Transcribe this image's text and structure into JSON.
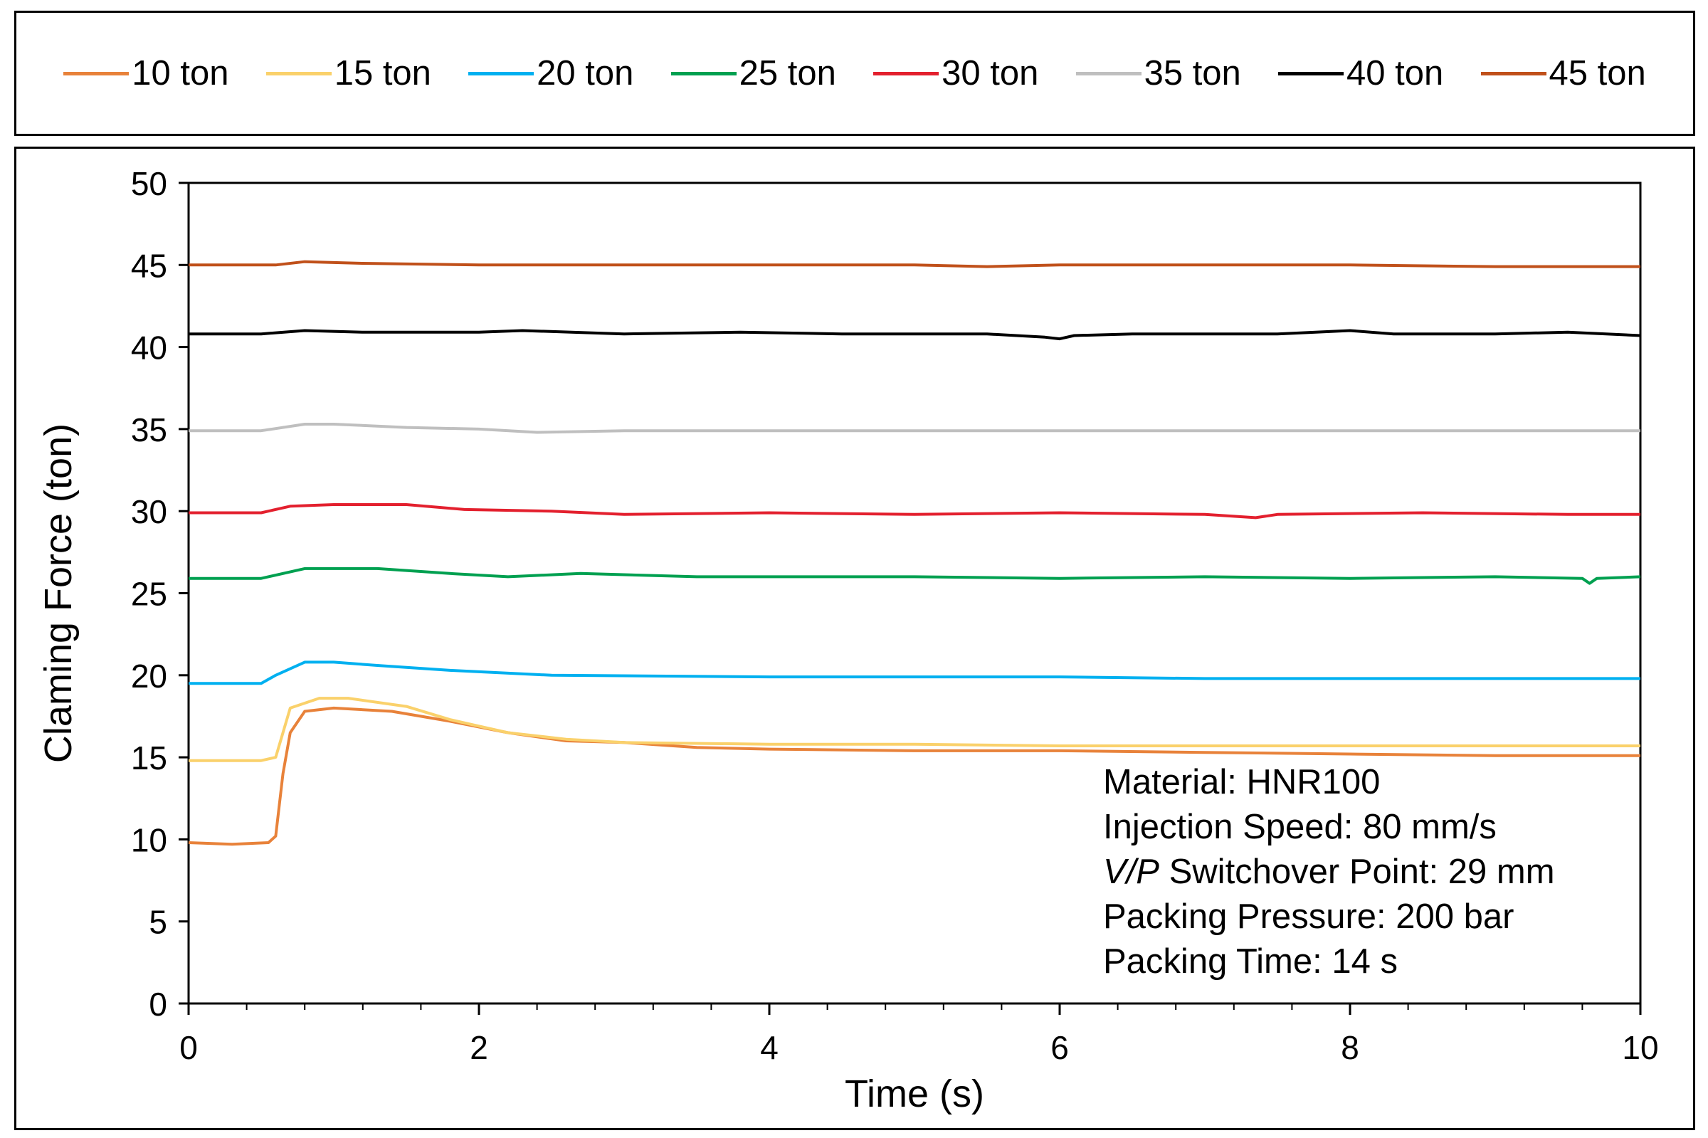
{
  "chart_data": {
    "type": "line",
    "title": "",
    "xlabel": "Time (s)",
    "ylabel": "Claming Force (ton)",
    "xlim": [
      0,
      10
    ],
    "ylim": [
      0,
      50
    ],
    "xticks": [
      "0",
      "2",
      "4",
      "6",
      "8",
      "10"
    ],
    "yticks": [
      "0",
      "5",
      "10",
      "15",
      "20",
      "25",
      "30",
      "35",
      "40",
      "45",
      "50"
    ],
    "legend_position": "top",
    "series": [
      {
        "name": "10 ton",
        "color": "#E8823A",
        "points": [
          [
            0,
            9.8
          ],
          [
            0.3,
            9.7
          ],
          [
            0.55,
            9.8
          ],
          [
            0.6,
            10.2
          ],
          [
            0.65,
            14
          ],
          [
            0.7,
            16.5
          ],
          [
            0.8,
            17.8
          ],
          [
            1.0,
            18.0
          ],
          [
            1.4,
            17.8
          ],
          [
            1.8,
            17.2
          ],
          [
            2.2,
            16.5
          ],
          [
            2.6,
            16.0
          ],
          [
            3.0,
            15.9
          ],
          [
            3.5,
            15.6
          ],
          [
            4.0,
            15.5
          ],
          [
            5.0,
            15.4
          ],
          [
            6.0,
            15.4
          ],
          [
            7.0,
            15.3
          ],
          [
            8.0,
            15.2
          ],
          [
            9.0,
            15.1
          ],
          [
            10.0,
            15.1
          ]
        ]
      },
      {
        "name": "15 ton",
        "color": "#FAD16B",
        "points": [
          [
            0,
            14.8
          ],
          [
            0.5,
            14.8
          ],
          [
            0.6,
            15.0
          ],
          [
            0.65,
            16.5
          ],
          [
            0.7,
            18.0
          ],
          [
            0.9,
            18.6
          ],
          [
            1.1,
            18.6
          ],
          [
            1.5,
            18.1
          ],
          [
            1.8,
            17.3
          ],
          [
            2.2,
            16.5
          ],
          [
            2.6,
            16.1
          ],
          [
            3.0,
            15.9
          ],
          [
            4.0,
            15.8
          ],
          [
            5.0,
            15.8
          ],
          [
            6.0,
            15.7
          ],
          [
            7.0,
            15.7
          ],
          [
            8.0,
            15.7
          ],
          [
            9.0,
            15.7
          ],
          [
            10.0,
            15.7
          ]
        ]
      },
      {
        "name": "20 ton",
        "color": "#00B0F0",
        "points": [
          [
            0,
            19.5
          ],
          [
            0.5,
            19.5
          ],
          [
            0.6,
            20.0
          ],
          [
            0.8,
            20.8
          ],
          [
            1.0,
            20.8
          ],
          [
            1.3,
            20.6
          ],
          [
            1.8,
            20.3
          ],
          [
            2.5,
            20.0
          ],
          [
            4.0,
            19.9
          ],
          [
            6.0,
            19.9
          ],
          [
            7.0,
            19.8
          ],
          [
            8.0,
            19.8
          ],
          [
            9.0,
            19.8
          ],
          [
            10.0,
            19.8
          ]
        ]
      },
      {
        "name": "25 ton",
        "color": "#00A050",
        "points": [
          [
            0,
            25.9
          ],
          [
            0.5,
            25.9
          ],
          [
            0.8,
            26.5
          ],
          [
            1.3,
            26.5
          ],
          [
            1.8,
            26.2
          ],
          [
            2.2,
            26.0
          ],
          [
            2.7,
            26.2
          ],
          [
            3.5,
            26.0
          ],
          [
            5.0,
            26.0
          ],
          [
            6.0,
            25.9
          ],
          [
            7.0,
            26.0
          ],
          [
            8.0,
            25.9
          ],
          [
            9.0,
            26.0
          ],
          [
            9.6,
            25.9
          ],
          [
            9.65,
            25.6
          ],
          [
            9.7,
            25.9
          ],
          [
            10.0,
            26.0
          ]
        ]
      },
      {
        "name": "30 ton",
        "color": "#E3202E",
        "points": [
          [
            0,
            29.9
          ],
          [
            0.5,
            29.9
          ],
          [
            0.7,
            30.3
          ],
          [
            1.0,
            30.4
          ],
          [
            1.5,
            30.4
          ],
          [
            1.9,
            30.1
          ],
          [
            2.5,
            30.0
          ],
          [
            3.0,
            29.8
          ],
          [
            4.0,
            29.9
          ],
          [
            5.0,
            29.8
          ],
          [
            6.0,
            29.9
          ],
          [
            7.0,
            29.8
          ],
          [
            7.35,
            29.6
          ],
          [
            7.5,
            29.8
          ],
          [
            8.5,
            29.9
          ],
          [
            9.5,
            29.8
          ],
          [
            10.0,
            29.8
          ]
        ]
      },
      {
        "name": "35 ton",
        "color": "#BFBFBF",
        "points": [
          [
            0,
            34.9
          ],
          [
            0.5,
            34.9
          ],
          [
            0.8,
            35.3
          ],
          [
            1.0,
            35.3
          ],
          [
            1.5,
            35.1
          ],
          [
            2.0,
            35.0
          ],
          [
            2.4,
            34.8
          ],
          [
            3.0,
            34.9
          ],
          [
            4.0,
            34.9
          ],
          [
            5.0,
            34.9
          ],
          [
            6.0,
            34.9
          ],
          [
            7.0,
            34.9
          ],
          [
            8.0,
            34.9
          ],
          [
            9.0,
            34.9
          ],
          [
            10.0,
            34.9
          ]
        ]
      },
      {
        "name": "40 ton",
        "color": "#000000",
        "points": [
          [
            0,
            40.8
          ],
          [
            0.5,
            40.8
          ],
          [
            0.8,
            41.0
          ],
          [
            1.2,
            40.9
          ],
          [
            2.0,
            40.9
          ],
          [
            2.3,
            41.0
          ],
          [
            3.0,
            40.8
          ],
          [
            3.8,
            40.9
          ],
          [
            4.5,
            40.8
          ],
          [
            5.5,
            40.8
          ],
          [
            5.9,
            40.6
          ],
          [
            6.0,
            40.5
          ],
          [
            6.1,
            40.7
          ],
          [
            6.5,
            40.8
          ],
          [
            7.0,
            40.8
          ],
          [
            7.5,
            40.8
          ],
          [
            8.0,
            41.0
          ],
          [
            8.3,
            40.8
          ],
          [
            9.0,
            40.8
          ],
          [
            9.5,
            40.9
          ],
          [
            10.0,
            40.7
          ]
        ]
      },
      {
        "name": "45 ton",
        "color": "#C0501A",
        "points": [
          [
            0,
            45.0
          ],
          [
            0.6,
            45.0
          ],
          [
            0.8,
            45.2
          ],
          [
            1.2,
            45.1
          ],
          [
            2.0,
            45.0
          ],
          [
            3.0,
            45.0
          ],
          [
            4.0,
            45.0
          ],
          [
            5.0,
            45.0
          ],
          [
            5.5,
            44.9
          ],
          [
            6.0,
            45.0
          ],
          [
            7.0,
            45.0
          ],
          [
            8.0,
            45.0
          ],
          [
            9.0,
            44.9
          ],
          [
            10.0,
            44.9
          ]
        ]
      }
    ]
  },
  "annotation": {
    "line1": "Material: HNR100",
    "line2": "Injection Speed: 80 mm/s",
    "line3_italic": "V/P",
    "line3_rest": "Switchover Point: 29 mm",
    "line4": "Packing Pressure: 200 bar",
    "line5": "Packing Time: 14 s"
  }
}
